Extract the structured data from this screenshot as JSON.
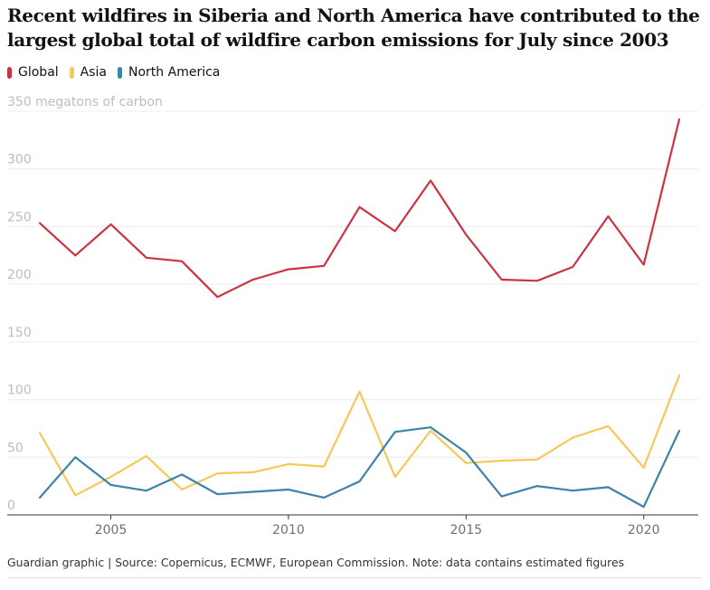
{
  "header": {
    "title": "Recent wildfires in Siberia and North America have contributed to the largest global total of wildfire carbon emissions for July since 2003"
  },
  "legend": [
    {
      "label": "Global",
      "color": "#cc3340"
    },
    {
      "label": "Asia",
      "color": "#f4c85a"
    },
    {
      "label": "North America",
      "color": "#3d84a8"
    }
  ],
  "footer": {
    "source": "Guardian graphic | Source: Copernicus, ECMWF, European Commission. Note: data contains estimated figures"
  },
  "chart_data": {
    "type": "line",
    "x": [
      2003,
      2004,
      2005,
      2006,
      2007,
      2008,
      2009,
      2010,
      2011,
      2012,
      2013,
      2014,
      2015,
      2016,
      2017,
      2018,
      2019,
      2020,
      2021
    ],
    "series": [
      {
        "name": "Global",
        "color": "#cc3340",
        "values": [
          253,
          225,
          252,
          223,
          220,
          189,
          204,
          213,
          216,
          267,
          246,
          290,
          243,
          204,
          203,
          215,
          259,
          217,
          343
        ]
      },
      {
        "name": "Asia",
        "color": "#f4c85a",
        "values": [
          71,
          17,
          33,
          51,
          22,
          36,
          37,
          44,
          42,
          107,
          33,
          73,
          45,
          47,
          48,
          67,
          77,
          41,
          121
        ]
      },
      {
        "name": "North America",
        "color": "#3d84a8",
        "values": [
          15,
          50,
          26,
          21,
          35,
          18,
          20,
          22,
          15,
          29,
          72,
          76,
          54,
          16,
          25,
          21,
          24,
          7,
          73
        ]
      }
    ],
    "yticks": [
      "350 megatons of carbon",
      "300",
      "250",
      "200",
      "150",
      "100",
      "50",
      "0"
    ],
    "ytick_values": [
      350,
      300,
      250,
      200,
      150,
      100,
      50,
      0
    ],
    "xticks": [
      "2005",
      "2010",
      "2015",
      "2020"
    ],
    "xtick_values": [
      2005,
      2010,
      2015,
      2020
    ],
    "ylim": [
      0,
      350
    ],
    "xlim": [
      2003,
      2021
    ],
    "grid": true
  }
}
